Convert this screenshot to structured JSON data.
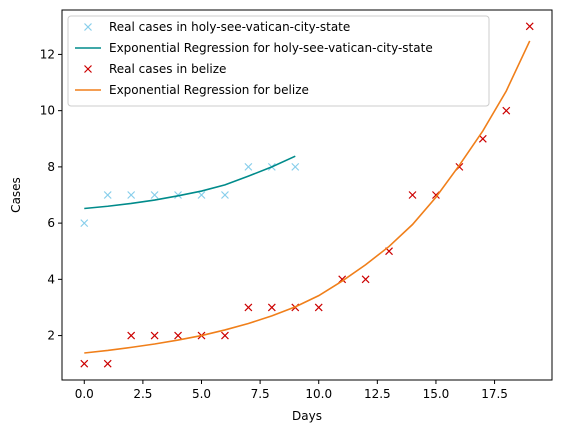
{
  "chart_data": {
    "type": "scatter",
    "title": "",
    "xlabel": "Days",
    "ylabel": "Cases",
    "xlim": [
      -0.95,
      19.95
    ],
    "ylim": [
      0.42,
      13.58
    ],
    "xticks": [
      0.0,
      2.5,
      5.0,
      7.5,
      10.0,
      12.5,
      15.0,
      17.5
    ],
    "xtick_labels": [
      "0.0",
      "2.5",
      "5.0",
      "7.5",
      "10.0",
      "12.5",
      "15.0",
      "17.5"
    ],
    "yticks": [
      2,
      4,
      6,
      8,
      10,
      12
    ],
    "ytick_labels": [
      "2",
      "4",
      "6",
      "8",
      "10",
      "12"
    ],
    "grid": false,
    "legend_position": "top-left",
    "series": [
      {
        "name": "Real cases in holy-see-vatican-city-state",
        "kind": "marker",
        "marker": "x",
        "color": "#87ceeb",
        "x": [
          0,
          1,
          2,
          3,
          4,
          5,
          6,
          7,
          8,
          9
        ],
        "y": [
          6,
          7,
          7,
          7,
          7,
          7,
          7,
          8,
          8,
          8
        ]
      },
      {
        "name": "Exponential Regression for holy-see-vatican-city-state",
        "kind": "line",
        "color": "#008b8b",
        "x": [
          0,
          1,
          2,
          3,
          4,
          5,
          6,
          7,
          8,
          9
        ],
        "y": [
          6.52,
          6.6,
          6.7,
          6.82,
          6.97,
          7.14,
          7.36,
          7.67,
          8.0,
          8.38
        ]
      },
      {
        "name": "Real cases in belize",
        "kind": "marker",
        "marker": "x",
        "color": "#cc0000",
        "x": [
          0,
          1,
          2,
          3,
          4,
          5,
          6,
          7,
          8,
          9,
          10,
          11,
          12,
          13,
          14,
          15,
          16,
          17,
          18,
          19
        ],
        "y": [
          1,
          1,
          2,
          2,
          2,
          2,
          2,
          3,
          3,
          3,
          3,
          4,
          4,
          5,
          7,
          7,
          8,
          9,
          10,
          13
        ]
      },
      {
        "name": "Exponential Regression for belize",
        "kind": "line",
        "color": "#f07f1a",
        "x": [
          0,
          1,
          2,
          3,
          4,
          5,
          6,
          7,
          8,
          9,
          10,
          11,
          12,
          13,
          14,
          15,
          16,
          17,
          18,
          19
        ],
        "y": [
          1.38,
          1.47,
          1.58,
          1.7,
          1.84,
          2.0,
          2.2,
          2.43,
          2.7,
          3.02,
          3.42,
          3.94,
          4.52,
          5.17,
          5.95,
          6.92,
          8.06,
          9.28,
          10.7,
          12.48
        ]
      }
    ]
  }
}
